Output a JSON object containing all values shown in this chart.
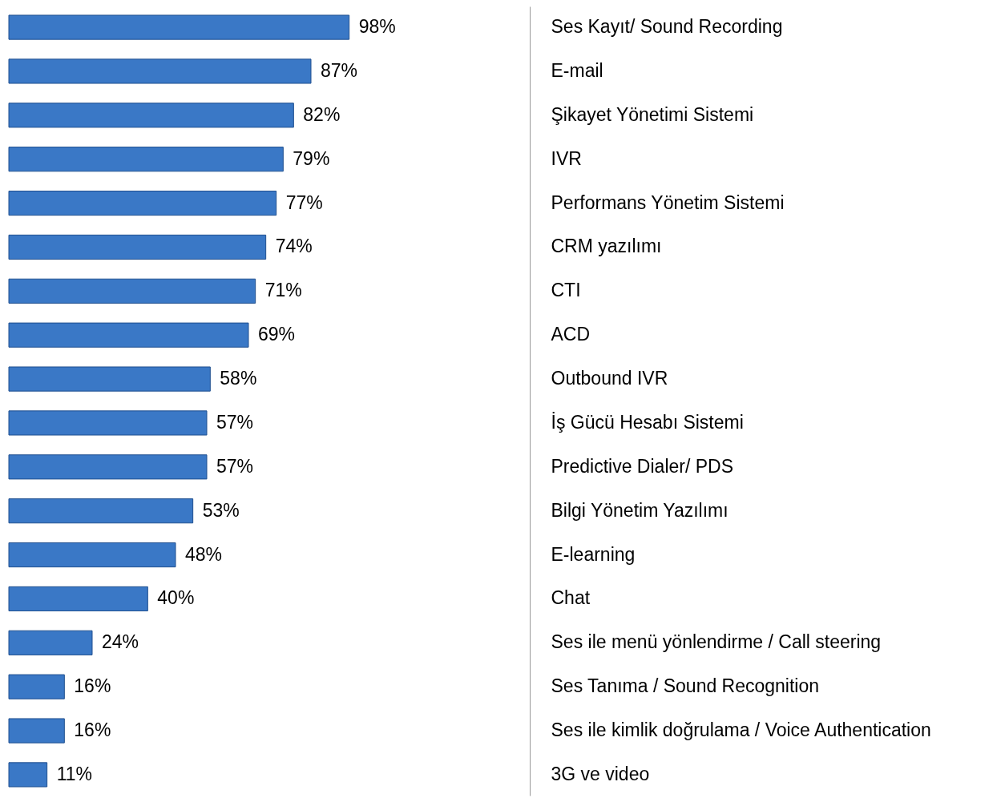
{
  "chart_data": {
    "type": "bar",
    "orientation": "horizontal",
    "categories": [
      "Ses Kayıt/ Sound Recording",
      "E-mail",
      "Şikayet Yönetimi Sistemi",
      "IVR",
      "Performans Yönetim Sistemi",
      "CRM yazılımı",
      "CTI",
      "ACD",
      "Outbound IVR",
      "İş Gücü Hesabı Sistemi",
      "Predictive Dialer/ PDS",
      "Bilgi Yönetim Yazılımı",
      "E-learning",
      "Chat",
      "Ses ile menü yönlendirme / Call steering",
      "Ses Tanıma / Sound Recognition",
      "Ses ile kimlik doğrulama / Voice Authentication",
      "3G ve video"
    ],
    "values": [
      98,
      87,
      82,
      79,
      77,
      74,
      71,
      69,
      58,
      57,
      57,
      53,
      48,
      40,
      24,
      16,
      16,
      11
    ],
    "value_labels": [
      "98%",
      "87%",
      "82%",
      "79%",
      "77%",
      "74%",
      "71%",
      "69%",
      "58%",
      "57%",
      "57%",
      "53%",
      "48%",
      "40%",
      "24%",
      "16%",
      "16%",
      "11%"
    ],
    "color": "#3a78c6",
    "xlim": [
      0,
      150
    ],
    "tick_labels": "y",
    "grid": false
  }
}
